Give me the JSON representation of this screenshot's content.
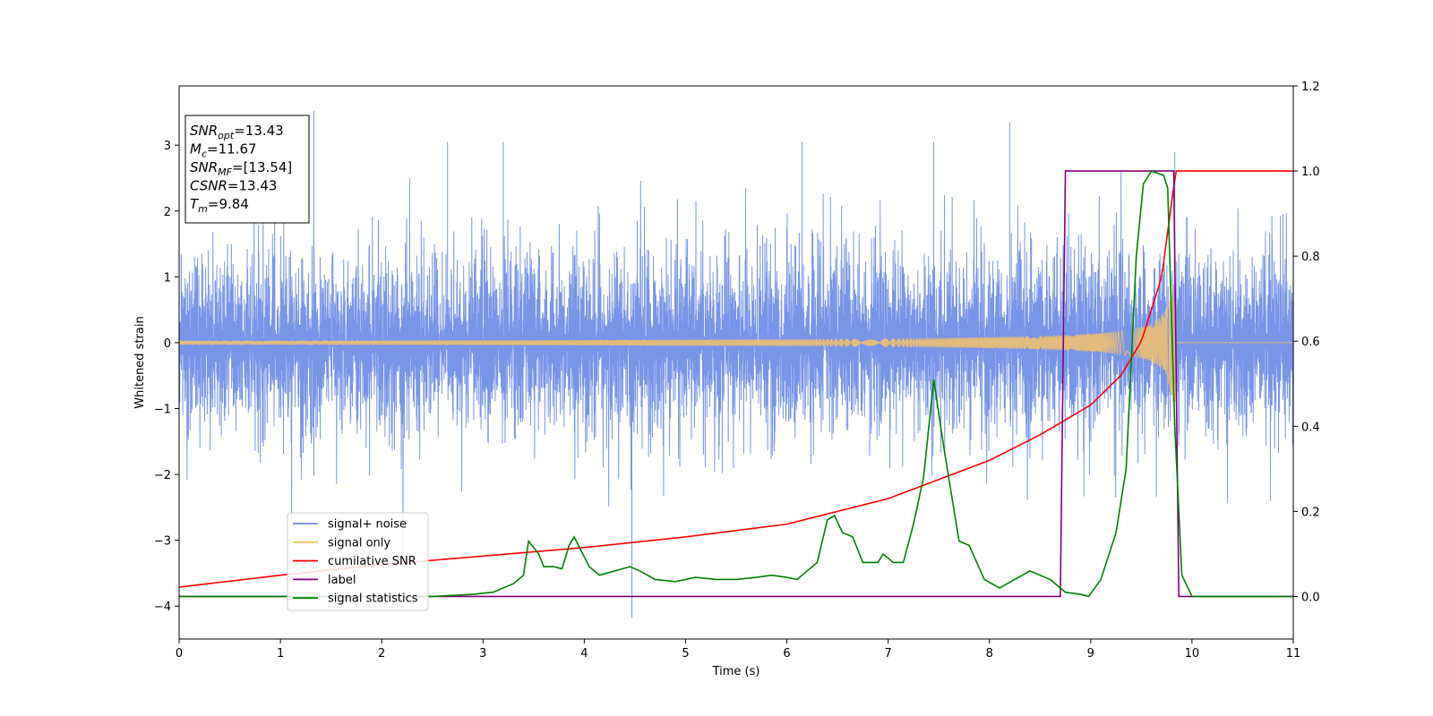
{
  "chart_data": {
    "type": "line",
    "xlabel": "Time (s)",
    "ylabel": "Whitened strain",
    "xlim": [
      0,
      11
    ],
    "ylim": [
      -4.5,
      3.9
    ],
    "y2lim": [
      -0.1,
      1.2
    ],
    "xticks": [
      0,
      1,
      2,
      3,
      4,
      5,
      6,
      7,
      8,
      9,
      10,
      11
    ],
    "yticks": [
      -4,
      -3,
      -2,
      -1,
      0,
      1,
      2,
      3
    ],
    "y2ticks": [
      0.0,
      0.2,
      0.4,
      0.6,
      0.8,
      1.0,
      1.2
    ],
    "info_box": [
      {
        "main": "SNR",
        "sub": "opt",
        "rest": "=13.43"
      },
      {
        "main": "M",
        "sub": "c",
        "rest": "=11.67"
      },
      {
        "main": "SNR",
        "sub": "MF",
        "rest": "=[13.54]"
      },
      {
        "main": "CSNR",
        "sub": "",
        "rest": "=13.43"
      },
      {
        "main": "T",
        "sub": "m",
        "rest": "=9.84"
      }
    ],
    "series": [
      {
        "name": "signal+ noise",
        "color": "#6a8ae6",
        "axis": "left",
        "kind": "noise",
        "typical_band": [
          -1.5,
          1.4
        ],
        "peaks": [
          {
            "x": 1.33,
            "y": 3.52
          },
          {
            "x": 2.65,
            "y": 3.05
          },
          {
            "x": 3.2,
            "y": 3.05
          },
          {
            "x": 4.47,
            "y": -4.18
          },
          {
            "x": 6.15,
            "y": 3.05
          },
          {
            "x": 7.45,
            "y": 3.05
          },
          {
            "x": 8.2,
            "y": 3.35
          },
          {
            "x": 9.83,
            "y": 2.9
          }
        ]
      },
      {
        "name": "signal only",
        "color": "#f5c26b",
        "axis": "left",
        "kind": "chirp",
        "merger_time": 9.84,
        "peak_amplitude": 0.9
      },
      {
        "name": "cumilative SNR",
        "color": "#ff0000",
        "axis": "right",
        "points": [
          [
            0,
            0.022
          ],
          [
            1,
            0.05
          ],
          [
            2,
            0.075
          ],
          [
            3,
            0.095
          ],
          [
            4,
            0.115
          ],
          [
            5,
            0.14
          ],
          [
            6,
            0.17
          ],
          [
            7,
            0.23
          ],
          [
            8,
            0.32
          ],
          [
            8.5,
            0.38
          ],
          [
            9,
            0.45
          ],
          [
            9.3,
            0.52
          ],
          [
            9.5,
            0.6
          ],
          [
            9.7,
            0.75
          ],
          [
            9.84,
            1.0
          ],
          [
            11,
            1.0
          ]
        ]
      },
      {
        "name": "label",
        "color": "#800080",
        "axis": "right",
        "points": [
          [
            0,
            0
          ],
          [
            8.7,
            0
          ],
          [
            8.75,
            1.0
          ],
          [
            9.82,
            1.0
          ],
          [
            9.87,
            0
          ],
          [
            11,
            0
          ]
        ]
      },
      {
        "name": "signal statistics",
        "color": "#008000",
        "axis": "right",
        "points": [
          [
            0,
            0
          ],
          [
            0.5,
            0
          ],
          [
            1,
            0
          ],
          [
            1.5,
            0
          ],
          [
            2,
            0
          ],
          [
            2.5,
            0
          ],
          [
            2.9,
            0.005
          ],
          [
            3.1,
            0.01
          ],
          [
            3.3,
            0.03
          ],
          [
            3.4,
            0.05
          ],
          [
            3.45,
            0.13
          ],
          [
            3.55,
            0.1
          ],
          [
            3.6,
            0.07
          ],
          [
            3.7,
            0.07
          ],
          [
            3.78,
            0.065
          ],
          [
            3.85,
            0.12
          ],
          [
            3.9,
            0.14
          ],
          [
            4.05,
            0.07
          ],
          [
            4.15,
            0.05
          ],
          [
            4.3,
            0.06
          ],
          [
            4.45,
            0.07
          ],
          [
            4.55,
            0.06
          ],
          [
            4.7,
            0.04
          ],
          [
            4.9,
            0.035
          ],
          [
            5.1,
            0.045
          ],
          [
            5.3,
            0.04
          ],
          [
            5.5,
            0.04
          ],
          [
            5.7,
            0.045
          ],
          [
            5.85,
            0.05
          ],
          [
            6.0,
            0.045
          ],
          [
            6.1,
            0.04
          ],
          [
            6.2,
            0.06
          ],
          [
            6.3,
            0.08
          ],
          [
            6.4,
            0.18
          ],
          [
            6.47,
            0.19
          ],
          [
            6.55,
            0.15
          ],
          [
            6.65,
            0.14
          ],
          [
            6.75,
            0.08
          ],
          [
            6.9,
            0.08
          ],
          [
            6.95,
            0.1
          ],
          [
            7.05,
            0.08
          ],
          [
            7.15,
            0.08
          ],
          [
            7.25,
            0.17
          ],
          [
            7.35,
            0.28
          ],
          [
            7.45,
            0.51
          ],
          [
            7.55,
            0.35
          ],
          [
            7.7,
            0.13
          ],
          [
            7.8,
            0.12
          ],
          [
            7.95,
            0.04
          ],
          [
            8.1,
            0.02
          ],
          [
            8.25,
            0.04
          ],
          [
            8.4,
            0.06
          ],
          [
            8.5,
            0.05
          ],
          [
            8.6,
            0.04
          ],
          [
            8.75,
            0.01
          ],
          [
            8.9,
            0.005
          ],
          [
            8.98,
            0.0
          ],
          [
            9.1,
            0.04
          ],
          [
            9.25,
            0.15
          ],
          [
            9.35,
            0.3
          ],
          [
            9.45,
            0.8
          ],
          [
            9.52,
            0.97
          ],
          [
            9.6,
            1.0
          ],
          [
            9.72,
            0.99
          ],
          [
            9.76,
            0.96
          ],
          [
            9.83,
            0.4
          ],
          [
            9.9,
            0.05
          ],
          [
            10.0,
            0
          ],
          [
            10.5,
            0
          ],
          [
            11,
            0
          ]
        ]
      }
    ],
    "legend": {
      "position": "lower-left",
      "entries": [
        "signal+ noise",
        "signal only",
        "cumilative SNR",
        "label",
        "signal statistics"
      ]
    },
    "grid": false
  }
}
